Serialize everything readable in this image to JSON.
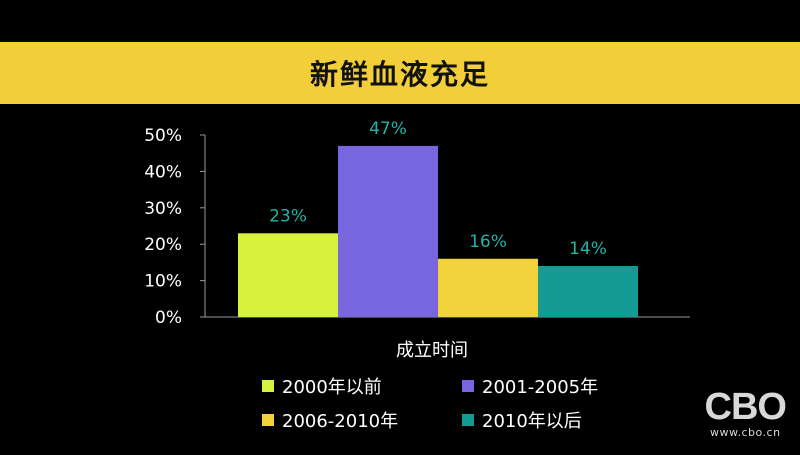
{
  "chart_data": {
    "type": "bar",
    "title": "新鲜血液充足",
    "xlabel": "成立时间",
    "ylabel": "",
    "ylim": [
      0,
      50
    ],
    "yticks": [
      "0%",
      "10%",
      "20%",
      "30%",
      "40%",
      "50%"
    ],
    "categories": [
      "2000年以前",
      "2001-2005年",
      "2006-2010年",
      "2010年以后"
    ],
    "values": [
      23,
      47,
      16,
      14
    ],
    "data_labels": [
      "23%",
      "47%",
      "16%",
      "14%"
    ],
    "colors": [
      "#d7f23e",
      "#7766dd",
      "#f2d23a",
      "#149c94"
    ],
    "label_color": "#22b3a6",
    "grid": false,
    "legend_position": "bottom"
  },
  "watermark": {
    "logo": "CBO",
    "url": "www.cbo.cn"
  }
}
